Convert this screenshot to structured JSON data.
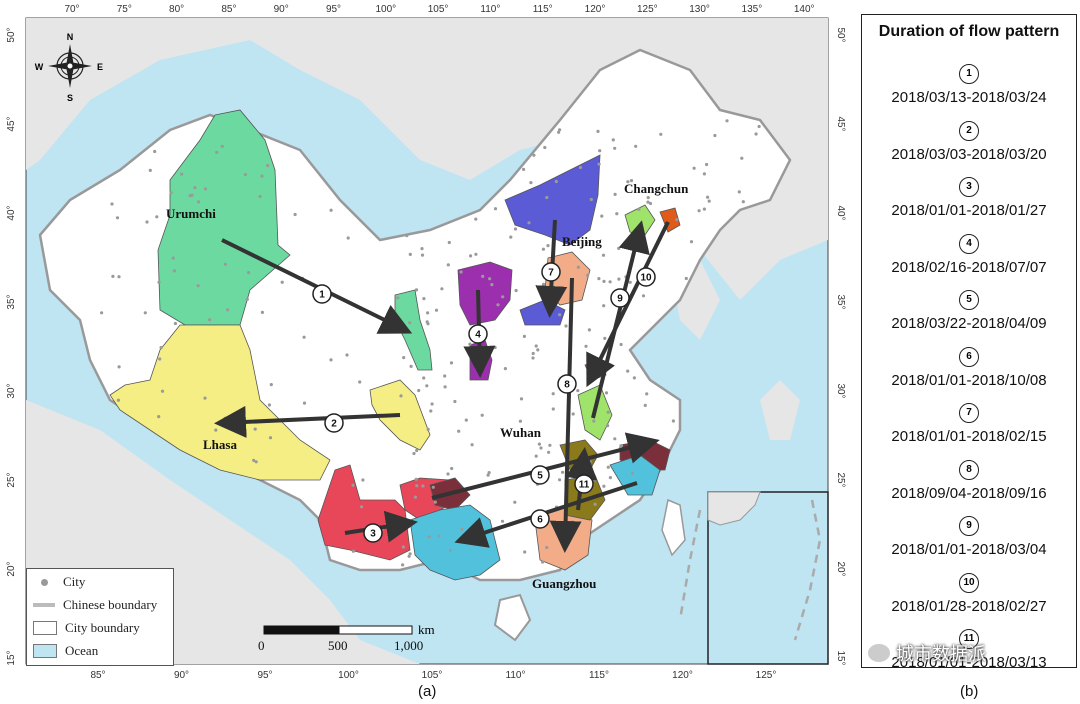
{
  "map": {
    "top_ticks": [
      "70°",
      "75°",
      "80°",
      "85°",
      "90°",
      "95°",
      "100°",
      "105°",
      "110°",
      "115°",
      "120°",
      "125°",
      "130°",
      "135°",
      "140°"
    ],
    "bottom_ticks": [
      "85°",
      "90°",
      "95°",
      "100°",
      "105°",
      "110°",
      "115°",
      "120°",
      "125°"
    ],
    "left_ticks": [
      "50°",
      "45°",
      "40°",
      "35°",
      "30°",
      "25°",
      "20°",
      "15°"
    ],
    "right_ticks": [
      "50°",
      "45°",
      "40°",
      "35°",
      "30°",
      "25°",
      "20°",
      "15°"
    ],
    "cities": [
      "Urumchi",
      "Lhasa",
      "Beijing",
      "Changchun",
      "Wuhan",
      "Guangzhou"
    ],
    "compass": {
      "n": "N",
      "s": "S",
      "e": "E",
      "w": "W"
    },
    "flow_numbers": [
      "1",
      "2",
      "3",
      "4",
      "5",
      "6",
      "7",
      "8",
      "9",
      "10",
      "11"
    ],
    "panel_label": "(a)"
  },
  "legend": {
    "items": [
      {
        "label": "City",
        "symbol": "dot",
        "color": "#999999"
      },
      {
        "label": "Chinese boundary",
        "symbol": "thick-line",
        "color": "#bbbbbb"
      },
      {
        "label": "City boundary",
        "symbol": "box",
        "color": "#ffffff"
      },
      {
        "label": "Ocean",
        "symbol": "box",
        "color": "#bfe4f2"
      }
    ]
  },
  "scale": {
    "unit": "km",
    "labels": [
      "0",
      "500",
      "1,000"
    ]
  },
  "duration": {
    "title": "Duration of flow pattern",
    "items": [
      {
        "num": "1",
        "range": "2018/03/13-2018/03/24"
      },
      {
        "num": "2",
        "range": "2018/03/03-2018/03/20"
      },
      {
        "num": "3",
        "range": "2018/01/01-2018/01/27"
      },
      {
        "num": "4",
        "range": "2018/02/16-2018/07/07"
      },
      {
        "num": "5",
        "range": "2018/03/22-2018/04/09"
      },
      {
        "num": "6",
        "range": "2018/01/01-2018/10/08"
      },
      {
        "num": "7",
        "range": "2018/01/01-2018/02/15"
      },
      {
        "num": "8",
        "range": "2018/09/04-2018/09/16"
      },
      {
        "num": "9",
        "range": "2018/01/01-2018/03/04"
      },
      {
        "num": "10",
        "range": "2018/01/28-2018/02/27"
      },
      {
        "num": "11",
        "range": "2018/01/01-2018/03/13"
      }
    ],
    "panel_label": "(b)"
  },
  "watermark": "城市数据派",
  "colors": {
    "ocean": "#bfe4f2",
    "land": "#ffffff",
    "urumchi": "#6cd9a0",
    "lhasa": "#f5ee84",
    "beijing_region": "#5b5bd6",
    "purple": "#9b2fae",
    "salmon": "#f2ad88",
    "lime": "#9fe36a",
    "red": "#e8475a",
    "maroon": "#7a2f3a",
    "cyan": "#52c2dc",
    "olive": "#8a7a1c",
    "orange": "#e05a1a",
    "arrow": "#333333"
  }
}
